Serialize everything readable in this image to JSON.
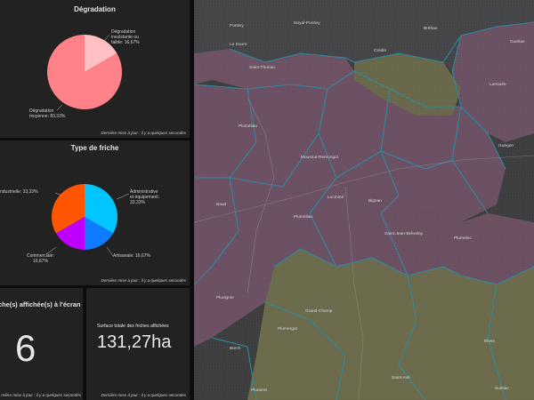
{
  "panels": {
    "degradation": {
      "title": "Dégradation",
      "footer": "Dernière mise à jour : il y a quelques secondes",
      "label_1a": "Dégradation",
      "label_1b": "inexistante ou",
      "label_1c": "faible: 16,67%",
      "label_2a": "Dégradation",
      "label_2b": "moyenne: 83,33%"
    },
    "type_friche": {
      "title": "Type de friche",
      "footer": "Dernière mise à jour : il y a quelques secondes",
      "label_industrielle": "ndustrielle: 33,33%",
      "label_admin_a": "Administrative",
      "label_admin_b": "et équipement:",
      "label_admin_c": "33,33%",
      "label_artisanale": "Artisanale: 16,67%",
      "label_commerciale_a": "Commerciale:",
      "label_commerciale_b": "16,67%"
    },
    "count": {
      "title": "che(s) affichée(s) à l'écran",
      "value": "6",
      "footer": "rnière mise à jour : il y a quelques secondes"
    },
    "surface": {
      "title": "Surface totale des friches affichées",
      "value": "131,27ha",
      "footer": "Dernière mise à jour : il y a quelques secondes"
    }
  },
  "chart_data": [
    {
      "type": "pie",
      "title": "Dégradation",
      "series": [
        {
          "label": "Dégradation inexistante ou faible",
          "value": 16.67,
          "color": "#ffc0c3"
        },
        {
          "label": "Dégradation moyenne",
          "value": 83.33,
          "color": "#ff8288"
        }
      ]
    },
    {
      "type": "pie",
      "title": "Type de friche",
      "series": [
        {
          "label": "Administrative et équipement",
          "value": 33.33,
          "color": "#00c5ff"
        },
        {
          "label": "Artisanale",
          "value": 16.67,
          "color": "#0f7bff"
        },
        {
          "label": "Commerciale",
          "value": 16.67,
          "color": "#c000ff"
        },
        {
          "label": "Industrielle",
          "value": 33.33,
          "color": "#ff5500"
        }
      ]
    }
  ],
  "map": {
    "places": [
      "Pontivy",
      "Noyal-Pontivy",
      "Bréhan",
      "Le Sourn",
      "Gueltas",
      "Crédin",
      "Saint-Thuriau",
      "Lanouée",
      "Pluméliau",
      "Guégon",
      "Moustoir-Remungol",
      "Baud",
      "Locminé",
      "Pluméliau",
      "Bignan",
      "Saint-Jean-Brévelay",
      "Plumelec",
      "Pluvigner",
      "Grand-Champ",
      "Plumergat",
      "Elven",
      "Brech",
      "Pluneret",
      "Saint-Avé",
      "Sulniac"
    ]
  },
  "colors": {
    "panel_bg": "#222222",
    "map_purple": "#6f5266",
    "map_olive": "#6d6b4c",
    "boundary": "#2a8fa6"
  }
}
